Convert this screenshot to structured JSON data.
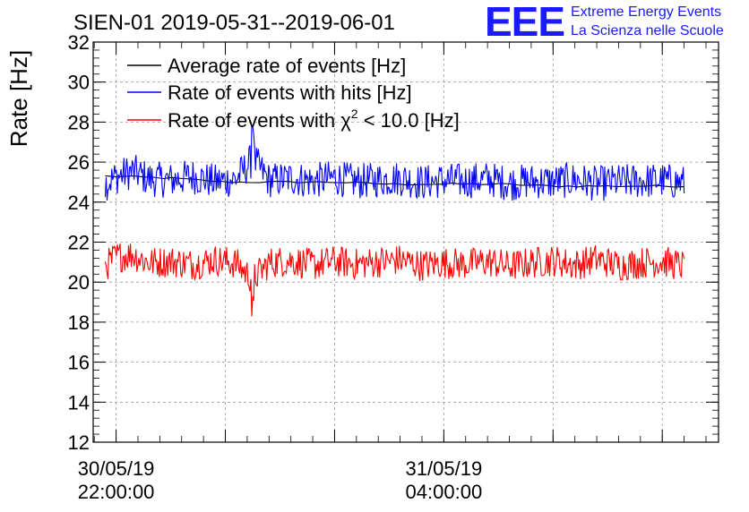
{
  "chart_data": {
    "type": "line",
    "title": "SIEN-01 2019-05-31--2019-06-01",
    "ylabel": "Rate [Hz]",
    "xlabel": "",
    "ylim": [
      12,
      32
    ],
    "xlim_hours": [
      -0.42,
      11.03
    ],
    "grid": true,
    "legend_position": "top-left",
    "y_major_ticks": [
      12,
      14,
      16,
      18,
      20,
      22,
      24,
      26,
      28,
      30,
      32
    ],
    "x_tick_labels": [
      {
        "hour": 0,
        "line1": "30/05/19",
        "line2": "22:00:00"
      },
      {
        "hour": 6,
        "line1": "31/05/19",
        "line2": "04:00:00"
      }
    ],
    "x_gridlines_hours": [
      0,
      2,
      4,
      6,
      8,
      10
    ],
    "series": [
      {
        "name": "Average rate of events [Hz]",
        "color": "#000000",
        "x_hours": [
          -0.2,
          1,
          2,
          3,
          4,
          5,
          6,
          7,
          8,
          9,
          10,
          10.4
        ],
        "values": [
          25.3,
          25.2,
          25.0,
          25.0,
          25.0,
          24.9,
          24.9,
          24.9,
          24.8,
          24.8,
          24.8,
          24.8
        ]
      },
      {
        "name": "Rate of events with hits [Hz]",
        "color": "#0000ff",
        "x_hours": [
          -0.2,
          0.0,
          0.3,
          0.6,
          1.0,
          1.4,
          1.8,
          2.2,
          2.5,
          2.8,
          3.2,
          3.6,
          4.0,
          4.4,
          4.8,
          5.2,
          5.6,
          6.0,
          6.4,
          6.8,
          7.2,
          7.6,
          8.0,
          8.4,
          8.8,
          9.2,
          9.6,
          10.0,
          10.4
        ],
        "values": [
          24.5,
          25.5,
          26.3,
          25.2,
          25.0,
          25.6,
          24.8,
          25.2,
          28.0,
          25.0,
          25.3,
          24.9,
          25.4,
          24.8,
          25.1,
          25.3,
          24.7,
          25.0,
          24.9,
          25.2,
          24.6,
          24.9,
          24.8,
          25.1,
          24.5,
          24.8,
          24.9,
          25.0,
          24.6
        ]
      },
      {
        "name": "Rate of events with χ² < 10.0 [Hz]",
        "color": "#ff0000",
        "x_hours": [
          -0.2,
          0.0,
          0.3,
          0.6,
          1.0,
          1.4,
          1.8,
          2.2,
          2.5,
          2.8,
          3.2,
          3.6,
          4.0,
          4.4,
          4.8,
          5.2,
          5.6,
          6.0,
          6.4,
          6.8,
          7.2,
          7.6,
          8.0,
          8.4,
          8.8,
          9.2,
          9.6,
          10.0,
          10.4
        ],
        "values": [
          20.5,
          21.8,
          22.2,
          21.0,
          21.2,
          20.8,
          21.4,
          20.9,
          18.6,
          21.0,
          21.3,
          20.7,
          21.2,
          20.8,
          21.1,
          21.4,
          20.6,
          21.0,
          20.8,
          21.2,
          20.5,
          21.0,
          21.3,
          20.7,
          21.5,
          20.6,
          21.0,
          21.2,
          20.5
        ]
      }
    ],
    "noise_amplitude": {
      "Average rate of events [Hz]": 0.05,
      "Rate of events with hits [Hz]": 0.9,
      "Rate of events with χ² < 10.0 [Hz]": 0.8
    }
  },
  "legend": [
    {
      "text": "Average rate of events [Hz]",
      "color": "#000000"
    },
    {
      "text": "Rate of events with hits [Hz]",
      "color": "#0000ff"
    },
    {
      "text_prefix": "Rate of events with ",
      "chi": "χ",
      "sup": "2",
      "text_suffix": " < 10.0 [Hz]",
      "color": "#ff0000"
    }
  ],
  "logo": {
    "big": "EEE",
    "line1": "Extreme Energy Events",
    "line2": "La Scienza nelle Scuole",
    "color": "#1a1aff"
  }
}
